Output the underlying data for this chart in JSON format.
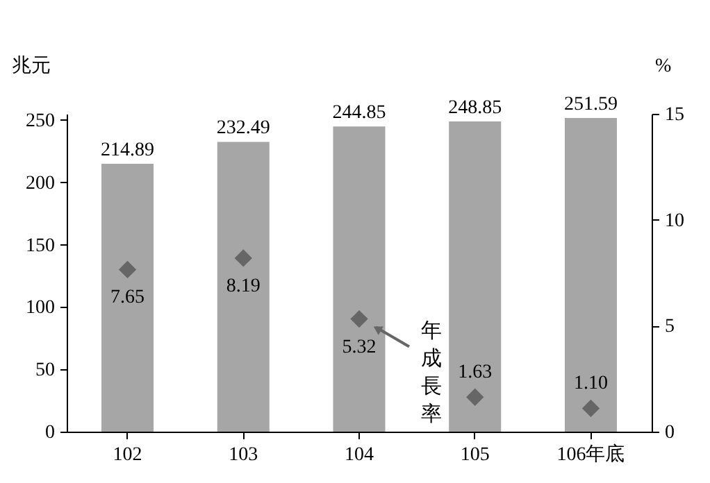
{
  "chart_data": {
    "type": "bar",
    "categories": [
      "102",
      "103",
      "104",
      "105",
      "106年底"
    ],
    "ylabel": "兆元",
    "y2label": "%",
    "ylim": [
      0,
      255
    ],
    "yticks": [
      0,
      50,
      100,
      150,
      200,
      250
    ],
    "y2lim": [
      0,
      15
    ],
    "y2ticks": [
      0,
      5,
      10,
      15
    ],
    "data_labels": true,
    "marker": "diamond",
    "series": [
      {
        "color": "#a6a6a6",
        "values": [
          214.89,
          232.49,
          244.85,
          248.85,
          251.59
        ]
      },
      {
        "type": "scatter",
        "axis": "y2",
        "color": "#666666",
        "values": [
          7.65,
          8.19,
          5.32,
          1.63,
          1.1
        ],
        "value_labels": [
          "7.65",
          "8.19",
          "5.32",
          "1.63",
          "1.10"
        ]
      }
    ],
    "annotations": [
      {
        "text": "年成長率",
        "x": "104",
        "y": 5.32
      }
    ]
  }
}
